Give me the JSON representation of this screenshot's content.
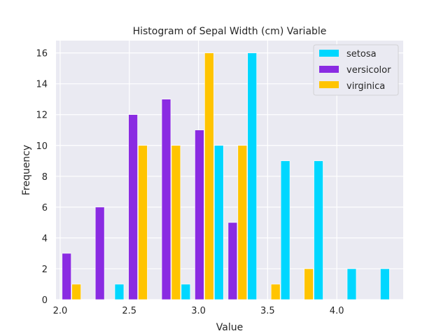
{
  "chart_data": {
    "type": "bar",
    "title": "Histogram of Sepal Width (cm)  Variable",
    "xlabel": "Value",
    "ylabel": "Frequency",
    "xlim": [
      1.97,
      4.48
    ],
    "ylim": [
      0,
      16.8
    ],
    "xticks": [
      "2.0",
      "2.5",
      "3.0",
      "3.5",
      "4.0"
    ],
    "xtick_values": [
      2.0,
      2.5,
      3.0,
      3.5,
      4.0
    ],
    "yticks": [
      "0",
      "2",
      "4",
      "6",
      "8",
      "10",
      "12",
      "14",
      "16"
    ],
    "ytick_values": [
      0,
      2,
      4,
      6,
      8,
      10,
      12,
      14,
      16
    ],
    "bin_edges": [
      2.0,
      2.24,
      2.48,
      2.72,
      2.96,
      3.2,
      3.44,
      3.68,
      3.92,
      4.16,
      4.4
    ],
    "grid": true,
    "legend_position": "top-right",
    "background": "#eaeaf2",
    "series": [
      {
        "name": "setosa",
        "color": "#00d7ff",
        "values": [
          0,
          1,
          0,
          1,
          10,
          16,
          9,
          9,
          2,
          2
        ]
      },
      {
        "name": "versicolor",
        "color": "#8a2be2",
        "values": [
          3,
          6,
          12,
          13,
          11,
          5,
          0,
          0,
          0,
          0
        ]
      },
      {
        "name": "virginica",
        "color": "#ffc400",
        "values": [
          1,
          0,
          10,
          10,
          16,
          10,
          1,
          2,
          0,
          0
        ]
      }
    ]
  }
}
